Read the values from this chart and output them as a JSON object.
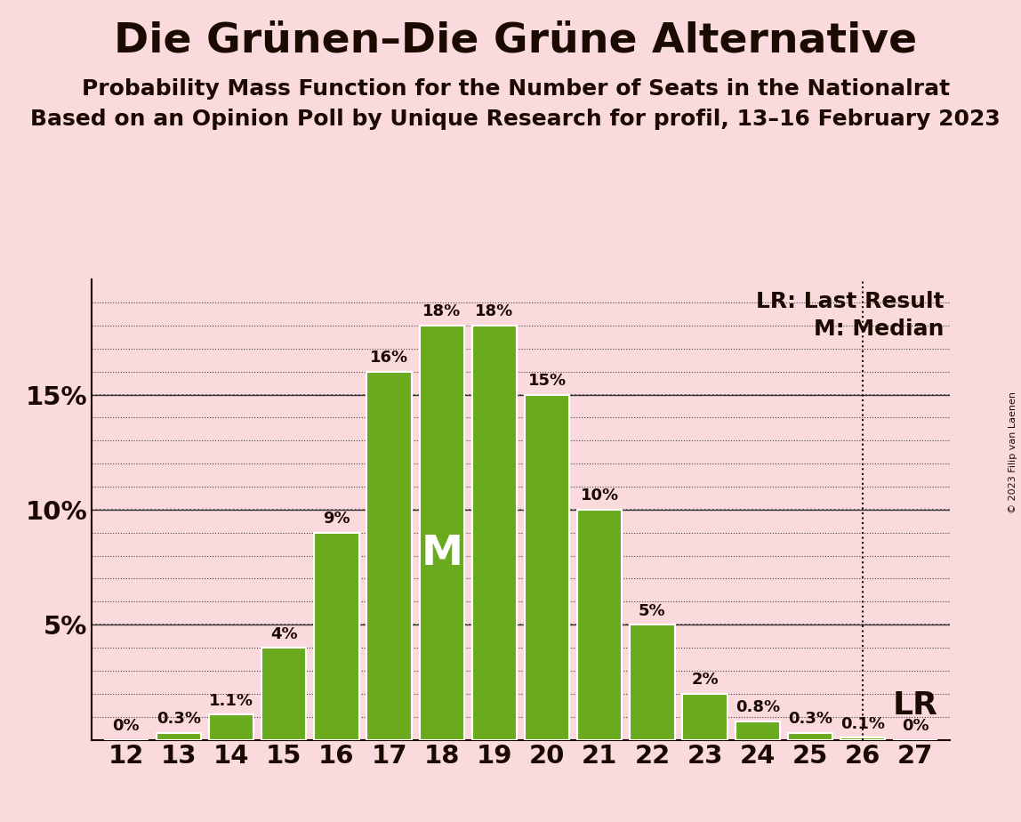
{
  "title": "Die Grünen–Die Grüne Alternative",
  "subtitle1": "Probability Mass Function for the Number of Seats in the Nationalrat",
  "subtitle2": "Based on an Opinion Poll by Unique Research for profil, 13–16 February 2023",
  "copyright": "© 2023 Filip van Laenen",
  "seats": [
    12,
    13,
    14,
    15,
    16,
    17,
    18,
    19,
    20,
    21,
    22,
    23,
    24,
    25,
    26,
    27
  ],
  "probabilities": [
    0.0,
    0.3,
    1.1,
    4.0,
    9.0,
    16.0,
    18.0,
    18.0,
    15.0,
    10.0,
    5.0,
    2.0,
    0.8,
    0.3,
    0.1,
    0.0
  ],
  "bar_color": "#6aaa1e",
  "bar_edge_color": "#ffffff",
  "background_color": "#fadadd",
  "text_color": "#1a0a00",
  "median_seat": 18,
  "last_result_seat": 26,
  "ylim": [
    0,
    20
  ],
  "yticks": [
    0,
    5,
    10,
    15,
    20
  ],
  "ytick_labels": [
    "",
    "5%",
    "10%",
    "15%",
    ""
  ],
  "legend_lr": "LR: Last Result",
  "legend_m": "M: Median",
  "bar_label_fontsize": 13,
  "title_fontsize": 34,
  "subtitle_fontsize": 18,
  "axis_label_fontsize": 21,
  "legend_fontsize": 18,
  "median_label": "M",
  "median_label_fontsize": 34,
  "lr_label": "LR",
  "lr_label_fontsize": 26
}
